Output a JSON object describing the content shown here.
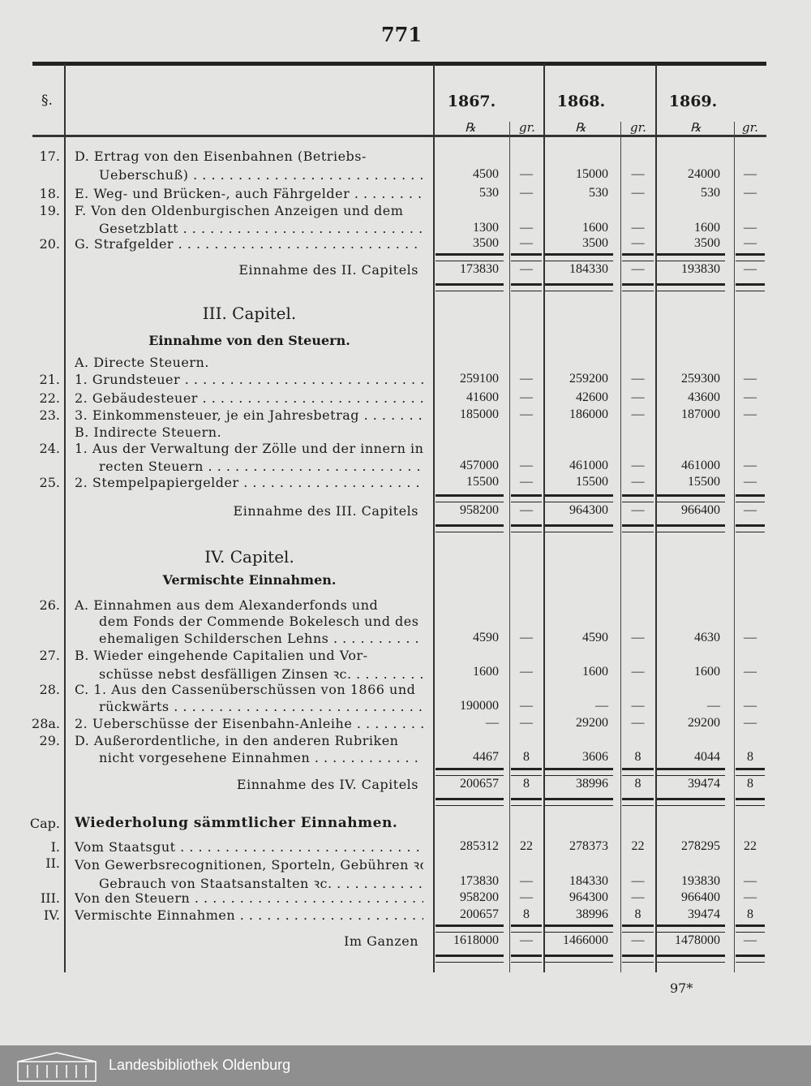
{
  "page_number": "771",
  "header": {
    "para_label": "§.",
    "years": [
      "1867.",
      "1868.",
      "1869."
    ],
    "unit_thaler": "℞",
    "unit_groschen": "gr."
  },
  "rows": [
    {
      "num": "17.",
      "lines": [
        "D. Ertrag von den Eisenbahnen (Betriebs-",
        "Ueberschuß)"
      ],
      "v": [
        "4500",
        "—",
        "15000",
        "—",
        "24000",
        "—"
      ]
    },
    {
      "num": "18.",
      "lines": [
        "E. Weg- und Brücken-, auch Fährgelder"
      ],
      "v": [
        "530",
        "—",
        "530",
        "—",
        "530",
        "—"
      ]
    },
    {
      "num": "19.",
      "lines": [
        "F. Von den Oldenburgischen Anzeigen und dem",
        "Gesetzblatt"
      ],
      "v": [
        "1300",
        "—",
        "1600",
        "—",
        "1600",
        "—"
      ]
    },
    {
      "num": "20.",
      "lines": [
        "G. Strafgelder"
      ],
      "v": [
        "3500",
        "—",
        "3500",
        "—",
        "3500",
        "—"
      ]
    },
    {
      "num": "",
      "lines": [
        "Einnahme des II. Capitels"
      ],
      "v": [
        "173830",
        "—",
        "184330",
        "—",
        "193830",
        "—"
      ],
      "total": true
    },
    {
      "num": "21.",
      "lines": [
        "1. Grundsteuer"
      ],
      "v": [
        "259100",
        "—",
        "259200",
        "—",
        "259300",
        "—"
      ]
    },
    {
      "num": "22.",
      "lines": [
        "2. Gebäudesteuer"
      ],
      "v": [
        "41600",
        "—",
        "42600",
        "—",
        "43600",
        "—"
      ]
    },
    {
      "num": "23.",
      "lines": [
        "3. Einkommensteuer, je ein Jahresbetrag"
      ],
      "v": [
        "185000",
        "—",
        "186000",
        "—",
        "187000",
        "—"
      ]
    },
    {
      "num": "24.",
      "lines": [
        "1. Aus der Verwaltung der Zölle und der innern indi-",
        "recten Steuern"
      ],
      "v": [
        "457000",
        "—",
        "461000",
        "—",
        "461000",
        "—"
      ]
    },
    {
      "num": "25.",
      "lines": [
        "2. Stempelpapiergelder"
      ],
      "v": [
        "15500",
        "—",
        "15500",
        "—",
        "15500",
        "—"
      ]
    },
    {
      "num": "",
      "lines": [
        "Einnahme des III. Capitels"
      ],
      "v": [
        "958200",
        "—",
        "964300",
        "—",
        "966400",
        "—"
      ],
      "total": true
    },
    {
      "num": "26.",
      "lines": [
        "A. Einnahmen aus dem Alexanderfonds und",
        "dem Fonds der Commende Bokelesch und des",
        "ehemaligen Schilderschen Lehns"
      ],
      "v": [
        "4590",
        "—",
        "4590",
        "—",
        "4630",
        "—"
      ]
    },
    {
      "num": "27.",
      "lines": [
        "B. Wieder eingehende Capitalien und Vor-",
        "schüsse nebst desfälligen Zinsen ꝛc."
      ],
      "v": [
        "1600",
        "—",
        "1600",
        "—",
        "1600",
        "—"
      ]
    },
    {
      "num": "28.",
      "lines": [
        "C. 1. Aus den Cassenüberschüssen von 1866 und",
        "rückwärts"
      ],
      "v": [
        "190000",
        "—",
        "—",
        "—",
        "—",
        "—"
      ]
    },
    {
      "num": "28a.",
      "lines": [
        "2. Ueberschüsse der Eisenbahn-Anleihe"
      ],
      "v": [
        "—",
        "—",
        "29200",
        "—",
        "29200",
        "—"
      ]
    },
    {
      "num": "29.",
      "lines": [
        "D. Außerordentliche, in den anderen Rubriken",
        "nicht vorgesehene Einnahmen"
      ],
      "v": [
        "4467",
        "8",
        "3606",
        "8",
        "4044",
        "8"
      ]
    },
    {
      "num": "",
      "lines": [
        "Einnahme des IV. Capitels"
      ],
      "v": [
        "200657",
        "8",
        "38996",
        "8",
        "39474",
        "8"
      ],
      "total": true
    },
    {
      "num": "I.",
      "lines": [
        "Vom Staatsgut"
      ],
      "v": [
        "285312",
        "22",
        "278373",
        "22",
        "278295",
        "22"
      ]
    },
    {
      "num": "II.",
      "lines": [
        "Von Gewerbsrecognitionen, Sporteln, Gebühren ꝛc. für den",
        "Gebrauch von Staatsanstalten ꝛc."
      ],
      "v": [
        "173830",
        "—",
        "184330",
        "—",
        "193830",
        "—"
      ]
    },
    {
      "num": "III.",
      "lines": [
        "Von den Steuern"
      ],
      "v": [
        "958200",
        "—",
        "964300",
        "—",
        "966400",
        "—"
      ]
    },
    {
      "num": "IV.",
      "lines": [
        "Vermischte Einnahmen"
      ],
      "v": [
        "200657",
        "8",
        "38996",
        "8",
        "39474",
        "8"
      ]
    },
    {
      "num": "",
      "lines": [
        "Im Ganzen"
      ],
      "v": [
        "1618000",
        "—",
        "1466000",
        "—",
        "1478000",
        "—"
      ],
      "total": true
    }
  ],
  "headings": {
    "cap3": "III. Capitel.",
    "cap3_sub": "Einnahme von den Steuern.",
    "cap3_a": "A. Directe Steuern.",
    "cap3_b": "B. Indirecte Steuern.",
    "cap4": "IV. Capitel.",
    "cap4_sub": "Vermischte Einnahmen.",
    "summary_label": "Cap.",
    "summary_title": "Wiederholung sämmtlicher Einnahmen."
  },
  "signature_mark": "97*",
  "footer": {
    "library": "Landesbibliothek Oldenburg"
  }
}
